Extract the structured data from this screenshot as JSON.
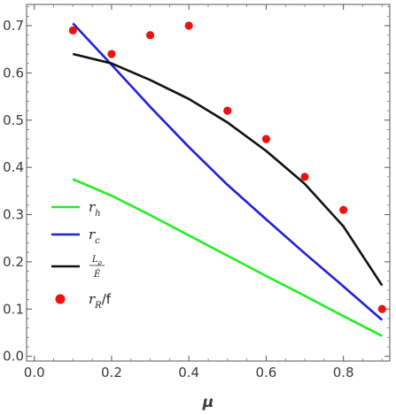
{
  "chart_data": {
    "type": "line",
    "xlabel": "μ",
    "ylabel": "",
    "xlim": [
      -0.02,
      0.92
    ],
    "ylim": [
      -0.01,
      0.745
    ],
    "x_ticks": [
      "0.0",
      "0.2",
      "0.4",
      "0.6",
      "0.8"
    ],
    "x_tick_values": [
      0.0,
      0.2,
      0.4,
      0.6,
      0.8
    ],
    "y_ticks": [
      "0.0",
      "0.1",
      "0.2",
      "0.3",
      "0.4",
      "0.5",
      "0.6",
      "0.7"
    ],
    "y_tick_values": [
      0.0,
      0.1,
      0.2,
      0.3,
      0.4,
      0.5,
      0.6,
      0.7
    ],
    "grid": false,
    "legend_position": "left",
    "series": [
      {
        "name": "r_h",
        "label_main": "r",
        "label_sub": "h",
        "type": "line",
        "color": "#22ee22",
        "x": [
          0.1,
          0.2,
          0.3,
          0.4,
          0.5,
          0.6,
          0.7,
          0.8,
          0.9
        ],
        "y": [
          0.375,
          0.34,
          0.299,
          0.256,
          0.213,
          0.17,
          0.128,
          0.085,
          0.043
        ]
      },
      {
        "name": "r_c",
        "label_main": "r",
        "label_sub": "c",
        "type": "line",
        "color": "#1f1fe0",
        "x": [
          0.1,
          0.2,
          0.3,
          0.4,
          0.5,
          0.6,
          0.7,
          0.8,
          0.9
        ],
        "y": [
          0.705,
          0.617,
          0.528,
          0.443,
          0.363,
          0.29,
          0.218,
          0.148,
          0.077
        ]
      },
      {
        "name": "L_ρ / Ê",
        "label_num": "L",
        "label_num_sub": "ρ",
        "label_den": "Ê",
        "type": "line",
        "color": "#111111",
        "x": [
          0.1,
          0.2,
          0.3,
          0.4,
          0.5,
          0.6,
          0.7,
          0.8,
          0.9
        ],
        "y": [
          0.64,
          0.62,
          0.585,
          0.545,
          0.495,
          0.435,
          0.365,
          0.275,
          0.15
        ]
      },
      {
        "name": "r_R/f",
        "label_main": "r",
        "label_sub": "R",
        "label_tail": "/f",
        "type": "scatter",
        "color": "#ee1111",
        "x": [
          0.1,
          0.2,
          0.3,
          0.4,
          0.5,
          0.6,
          0.7,
          0.8,
          0.9
        ],
        "y": [
          0.69,
          0.64,
          0.68,
          0.7,
          0.52,
          0.46,
          0.38,
          0.31,
          0.1
        ]
      }
    ]
  }
}
